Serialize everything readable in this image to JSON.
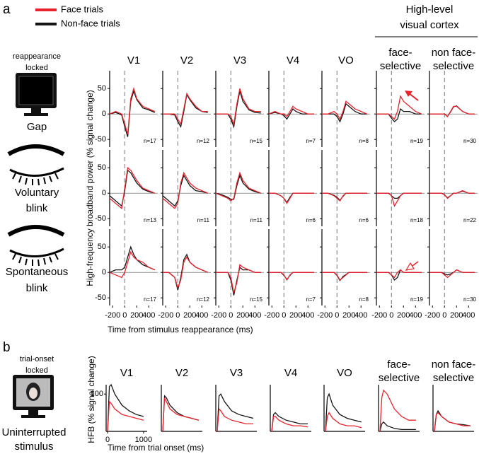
{
  "panel_a": {
    "label": "a",
    "legend": [
      {
        "name": "Face trials",
        "color": "#e8232d"
      },
      {
        "name": "Non-face trials",
        "color": "#141414"
      }
    ],
    "group_title": [
      "High-level",
      "visual cortex"
    ],
    "areas": [
      [
        "V1"
      ],
      [
        "V2"
      ],
      [
        "V3"
      ],
      [
        "V4"
      ],
      [
        "VO"
      ],
      [
        "face-",
        "selective"
      ],
      [
        "non face-",
        "selective"
      ]
    ],
    "y_label": "High-frequency broadband power (% signal change)",
    "x_label": "Time from stimulus reappearance (ms)",
    "xlim": [
      -250,
      550
    ],
    "ylim": [
      -65,
      85
    ],
    "xticks": [
      -200,
      0,
      200,
      400
    ],
    "yticks": [
      50,
      0,
      -50
    ],
    "x": [
      -250,
      -150,
      -50,
      0,
      50,
      100,
      150,
      200,
      300,
      400,
      500
    ],
    "rows": [
      {
        "header": [
          "reappearance",
          "locked"
        ],
        "label": [
          "Gap"
        ],
        "panels": [
          {
            "n": "n=17",
            "face": [
              0,
              5,
              0,
              -20,
              -40,
              30,
              50,
              30,
              15,
              10,
              5
            ],
            "nonface": [
              0,
              3,
              -2,
              -25,
              -45,
              25,
              45,
              28,
              12,
              8,
              3
            ]
          },
          {
            "n": "n=12",
            "face": [
              0,
              0,
              0,
              -10,
              -20,
              10,
              40,
              30,
              15,
              5,
              5
            ],
            "nonface": [
              0,
              0,
              -2,
              -15,
              -25,
              5,
              38,
              28,
              12,
              5,
              3
            ]
          },
          {
            "n": "n=15",
            "face": [
              0,
              0,
              0,
              -5,
              -20,
              20,
              50,
              30,
              10,
              5,
              5
            ],
            "nonface": [
              0,
              0,
              0,
              -10,
              -25,
              15,
              45,
              25,
              8,
              3,
              2
            ]
          },
          {
            "n": "n=7",
            "face": [
              0,
              5,
              0,
              0,
              -5,
              5,
              15,
              10,
              5,
              0,
              0
            ],
            "nonface": [
              0,
              3,
              0,
              -3,
              -10,
              0,
              10,
              5,
              0,
              0,
              0
            ]
          },
          {
            "n": "n=8",
            "face": [
              0,
              0,
              5,
              0,
              -10,
              5,
              25,
              20,
              10,
              5,
              0
            ],
            "nonface": [
              0,
              0,
              0,
              -5,
              -15,
              0,
              20,
              15,
              5,
              0,
              0
            ]
          },
          {
            "n": "n=19",
            "face": [
              0,
              0,
              0,
              -5,
              -10,
              5,
              35,
              25,
              15,
              5,
              0
            ],
            "nonface": [
              0,
              0,
              0,
              -8,
              -15,
              -10,
              10,
              5,
              5,
              0,
              0
            ]
          },
          {
            "n": "n=30",
            "face": [
              0,
              0,
              0,
              0,
              -5,
              5,
              15,
              15,
              5,
              0,
              0
            ],
            "nonface": [
              0,
              0,
              0,
              0,
              -5,
              4,
              14,
              16,
              5,
              0,
              0
            ]
          }
        ]
      },
      {
        "label": [
          "Voluntary",
          "blink"
        ],
        "panels": [
          {
            "n": "n=13",
            "face": [
              -10,
              -20,
              -30,
              10,
              50,
              45,
              35,
              25,
              10,
              5,
              0
            ],
            "nonface": [
              -5,
              -15,
              -25,
              5,
              45,
              40,
              30,
              20,
              8,
              3,
              0
            ]
          },
          {
            "n": "n=11",
            "face": [
              -10,
              -20,
              -30,
              -20,
              20,
              40,
              30,
              20,
              10,
              5,
              0
            ],
            "nonface": [
              -5,
              -15,
              -25,
              -15,
              15,
              35,
              25,
              15,
              5,
              3,
              0
            ]
          },
          {
            "n": "n=11",
            "face": [
              0,
              -5,
              -10,
              -15,
              -10,
              20,
              40,
              25,
              10,
              5,
              0
            ],
            "nonface": [
              0,
              -3,
              -8,
              -12,
              -12,
              15,
              35,
              20,
              8,
              3,
              0
            ]
          },
          {
            "n": "n=6",
            "face": [
              0,
              0,
              -5,
              -10,
              -20,
              -10,
              0,
              0,
              0,
              0,
              0
            ],
            "nonface": [
              0,
              0,
              -5,
              -10,
              -18,
              -8,
              0,
              0,
              0,
              0,
              0
            ]
          },
          {
            "n": "n=6",
            "face": [
              0,
              0,
              -5,
              -10,
              -15,
              -5,
              0,
              0,
              0,
              0,
              0
            ],
            "nonface": [
              0,
              0,
              -4,
              -8,
              -14,
              -6,
              0,
              0,
              0,
              0,
              0
            ]
          },
          {
            "n": "n=18",
            "face": [
              0,
              0,
              0,
              -5,
              -25,
              -15,
              -5,
              0,
              0,
              0,
              0
            ],
            "nonface": [
              0,
              0,
              0,
              -5,
              -10,
              -10,
              -5,
              0,
              0,
              0,
              0
            ]
          },
          {
            "n": "n=22",
            "face": [
              0,
              0,
              0,
              -3,
              -10,
              -5,
              0,
              0,
              5,
              0,
              0
            ],
            "nonface": [
              0,
              0,
              0,
              -3,
              -9,
              -5,
              0,
              0,
              4,
              0,
              0
            ]
          }
        ]
      },
      {
        "label": [
          "Spontaneous",
          "blink"
        ],
        "panels": [
          {
            "n": "n=17",
            "face": [
              0,
              -5,
              -10,
              0,
              20,
              40,
              30,
              25,
              20,
              10,
              5
            ],
            "nonface": [
              0,
              5,
              5,
              10,
              30,
              50,
              35,
              25,
              15,
              10,
              5
            ]
          },
          {
            "n": "n=12",
            "face": [
              0,
              0,
              -10,
              -30,
              -15,
              20,
              30,
              20,
              10,
              5,
              0
            ],
            "nonface": [
              0,
              0,
              -10,
              -35,
              -10,
              25,
              35,
              20,
              10,
              5,
              0
            ]
          },
          {
            "n": "n=15",
            "face": [
              0,
              0,
              0,
              -10,
              -40,
              -20,
              15,
              10,
              5,
              0,
              0
            ],
            "nonface": [
              0,
              0,
              0,
              -15,
              -45,
              -15,
              10,
              5,
              5,
              0,
              0
            ]
          },
          {
            "n": "n=7",
            "face": [
              0,
              0,
              0,
              -5,
              -15,
              -5,
              0,
              0,
              0,
              0,
              0
            ],
            "nonface": [
              0,
              0,
              0,
              -6,
              -14,
              -6,
              0,
              0,
              0,
              0,
              0
            ]
          },
          {
            "n": "n=8",
            "face": [
              0,
              0,
              0,
              -5,
              -15,
              -10,
              -5,
              0,
              0,
              0,
              0
            ],
            "nonface": [
              0,
              0,
              0,
              -6,
              -16,
              -8,
              -4,
              0,
              0,
              0,
              0
            ]
          },
          {
            "n": "n=19",
            "face": [
              0,
              0,
              0,
              -5,
              -10,
              0,
              5,
              0,
              0,
              0,
              0
            ],
            "nonface": [
              0,
              0,
              0,
              -5,
              -15,
              -10,
              5,
              0,
              0,
              0,
              0
            ]
          },
          {
            "n": "n=30",
            "face": [
              0,
              0,
              0,
              -5,
              -10,
              -5,
              0,
              5,
              0,
              0,
              0
            ],
            "nonface": [
              0,
              0,
              0,
              -3,
              -5,
              -3,
              0,
              5,
              0,
              0,
              0
            ]
          }
        ]
      }
    ]
  },
  "panel_b": {
    "label": "b",
    "header": [
      "trial-onset",
      "locked"
    ],
    "condition": [
      "Uninterrupted",
      "stimulus"
    ],
    "areas": [
      [
        "V1"
      ],
      [
        "V2"
      ],
      [
        "V3"
      ],
      [
        "V4"
      ],
      [
        "VO"
      ],
      [
        "face-",
        "selective"
      ],
      [
        "non face-",
        "selective"
      ]
    ],
    "y_label": "HFB (% signal change)",
    "x_label": "Time from trial onset (ms)",
    "xlim": [
      -40,
      1100
    ],
    "ylim": [
      0,
      125
    ],
    "xticks": [
      0,
      1000
    ],
    "yticks": [
      100
    ],
    "x": [
      0,
      50,
      100,
      200,
      400,
      600,
      800,
      1000
    ],
    "panels": [
      {
        "face": [
          0,
          80,
          75,
          60,
          45,
          40,
          35,
          30
        ],
        "nonface": [
          0,
          120,
          125,
          100,
          70,
          55,
          45,
          40
        ]
      },
      {
        "face": [
          0,
          90,
          80,
          60,
          45,
          40,
          35,
          30
        ],
        "nonface": [
          0,
          95,
          90,
          70,
          50,
          40,
          35,
          30
        ]
      },
      {
        "face": [
          0,
          60,
          55,
          40,
          30,
          25,
          20,
          20
        ],
        "nonface": [
          0,
          95,
          100,
          80,
          55,
          45,
          40,
          35
        ]
      },
      {
        "face": [
          0,
          40,
          40,
          30,
          20,
          15,
          15,
          12
        ],
        "nonface": [
          0,
          45,
          50,
          40,
          30,
          25,
          20,
          20
        ]
      },
      {
        "face": [
          0,
          40,
          50,
          35,
          20,
          15,
          15,
          10
        ],
        "nonface": [
          0,
          90,
          100,
          70,
          45,
          35,
          30,
          25
        ]
      },
      {
        "face": [
          0,
          90,
          110,
          100,
          60,
          40,
          30,
          30
        ],
        "nonface": [
          0,
          20,
          25,
          15,
          8,
          5,
          5,
          5
        ]
      },
      {
        "face": [
          0,
          45,
          50,
          40,
          25,
          20,
          15,
          15
        ],
        "nonface": [
          0,
          45,
          55,
          40,
          25,
          20,
          18,
          15
        ]
      }
    ]
  }
}
